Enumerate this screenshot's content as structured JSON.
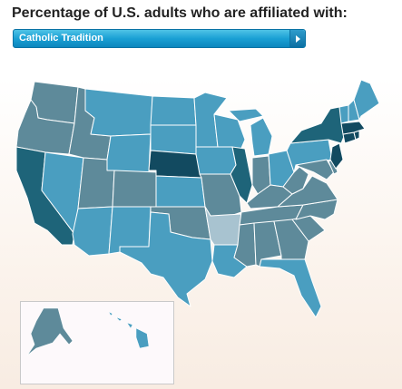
{
  "title": "Percentage of U.S. adults who are affiliated with:",
  "selector": {
    "selected": "Catholic Tradition",
    "arrow_icon": "play-arrow-icon"
  },
  "map": {
    "palette": {
      "darkest": "#124a60",
      "dark": "#1e6479",
      "mid_dark": "#3c7b8d",
      "mid": "#5e8a9a",
      "light_mid": "#4a9ec0",
      "light": "#5cafd0",
      "pale": "#a8c3d0"
    },
    "states": [
      {
        "id": "WA",
        "shade": "mid"
      },
      {
        "id": "OR",
        "shade": "mid"
      },
      {
        "id": "CA",
        "shade": "dark"
      },
      {
        "id": "NV",
        "shade": "light_mid"
      },
      {
        "id": "ID",
        "shade": "mid"
      },
      {
        "id": "MT",
        "shade": "light_mid"
      },
      {
        "id": "WY",
        "shade": "light_mid"
      },
      {
        "id": "UT",
        "shade": "mid"
      },
      {
        "id": "AZ",
        "shade": "light_mid"
      },
      {
        "id": "CO",
        "shade": "mid"
      },
      {
        "id": "NM",
        "shade": "light_mid"
      },
      {
        "id": "ND",
        "shade": "light_mid"
      },
      {
        "id": "SD",
        "shade": "light_mid"
      },
      {
        "id": "NE",
        "shade": "darkest"
      },
      {
        "id": "KS",
        "shade": "light_mid"
      },
      {
        "id": "OK",
        "shade": "mid"
      },
      {
        "id": "TX",
        "shade": "light_mid"
      },
      {
        "id": "MN",
        "shade": "light_mid"
      },
      {
        "id": "IA",
        "shade": "light_mid"
      },
      {
        "id": "MO",
        "shade": "mid"
      },
      {
        "id": "AR",
        "shade": "pale"
      },
      {
        "id": "LA",
        "shade": "light_mid"
      },
      {
        "id": "WI",
        "shade": "light_mid"
      },
      {
        "id": "IL",
        "shade": "dark"
      },
      {
        "id": "MI",
        "shade": "light_mid"
      },
      {
        "id": "IN",
        "shade": "mid"
      },
      {
        "id": "OH",
        "shade": "light_mid"
      },
      {
        "id": "KY",
        "shade": "mid"
      },
      {
        "id": "TN",
        "shade": "mid"
      },
      {
        "id": "MS",
        "shade": "mid"
      },
      {
        "id": "AL",
        "shade": "mid"
      },
      {
        "id": "GA",
        "shade": "mid"
      },
      {
        "id": "FL",
        "shade": "light_mid"
      },
      {
        "id": "SC",
        "shade": "mid"
      },
      {
        "id": "NC",
        "shade": "mid"
      },
      {
        "id": "VA",
        "shade": "mid"
      },
      {
        "id": "WV",
        "shade": "mid"
      },
      {
        "id": "PA",
        "shade": "light_mid"
      },
      {
        "id": "NY",
        "shade": "dark"
      },
      {
        "id": "VT",
        "shade": "light_mid"
      },
      {
        "id": "NH",
        "shade": "light_mid"
      },
      {
        "id": "ME",
        "shade": "light_mid"
      },
      {
        "id": "MA",
        "shade": "darkest"
      },
      {
        "id": "RI",
        "shade": "darkest"
      },
      {
        "id": "CT",
        "shade": "darkest"
      },
      {
        "id": "NJ",
        "shade": "darkest"
      },
      {
        "id": "DE",
        "shade": "mid"
      },
      {
        "id": "MD",
        "shade": "mid"
      },
      {
        "id": "AK",
        "shade": "mid"
      },
      {
        "id": "HI",
        "shade": "light_mid"
      }
    ]
  }
}
